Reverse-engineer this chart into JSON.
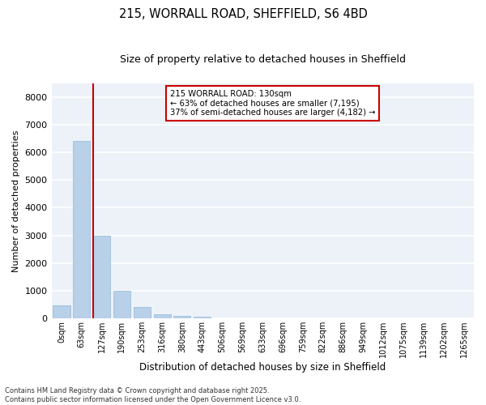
{
  "title1": "215, WORRALL ROAD, SHEFFIELD, S6 4BD",
  "title2": "Size of property relative to detached houses in Sheffield",
  "xlabel": "Distribution of detached houses by size in Sheffield",
  "ylabel": "Number of detached properties",
  "bar_color": "#b8d0e8",
  "bar_edge_color": "#90b8d8",
  "background_color": "#edf2f9",
  "grid_color": "#ffffff",
  "categories": [
    "0sqm",
    "63sqm",
    "127sqm",
    "190sqm",
    "253sqm",
    "316sqm",
    "380sqm",
    "443sqm",
    "506sqm",
    "569sqm",
    "633sqm",
    "696sqm",
    "759sqm",
    "822sqm",
    "886sqm",
    "949sqm",
    "1012sqm",
    "1075sqm",
    "1139sqm",
    "1202sqm",
    "1265sqm"
  ],
  "values": [
    480,
    6400,
    3000,
    1000,
    400,
    150,
    100,
    50,
    10,
    0,
    0,
    0,
    0,
    0,
    0,
    0,
    0,
    0,
    0,
    0,
    0
  ],
  "ylim": [
    0,
    8500
  ],
  "yticks": [
    0,
    1000,
    2000,
    3000,
    4000,
    5000,
    6000,
    7000,
    8000
  ],
  "property_line_color": "#cc0000",
  "annotation_line1": "215 WORRALL ROAD: 130sqm",
  "annotation_line2": "← 63% of detached houses are smaller (7,195)",
  "annotation_line3": "37% of semi-detached houses are larger (4,182) →",
  "annotation_box_color": "#cc0000",
  "footer1": "Contains HM Land Registry data © Crown copyright and database right 2025.",
  "footer2": "Contains public sector information licensed under the Open Government Licence v3.0."
}
